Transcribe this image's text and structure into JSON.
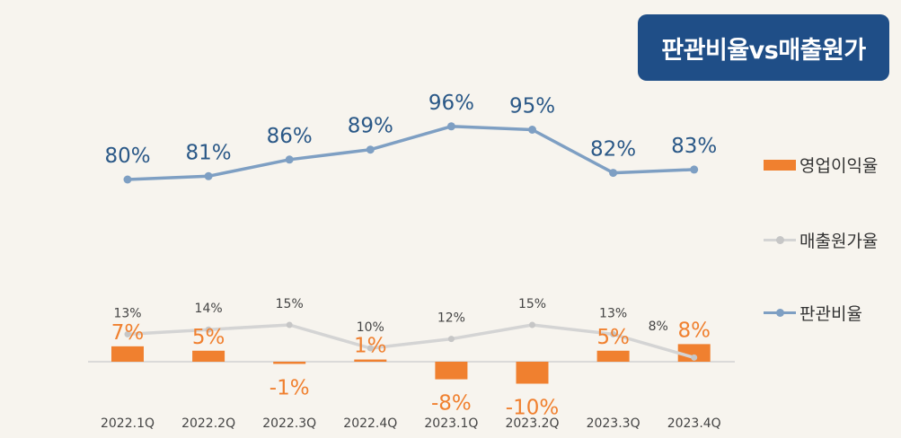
{
  "title": "판관비율vs매출원가",
  "colors": {
    "background": "#f7f4ee",
    "title_bg": "#1f4e87",
    "opm": "#f0802f",
    "cogs": "#d4d4d4",
    "cogs_marker": "#c6c6c6",
    "sga_line": "#7e9fc3",
    "sga_text": "#2a5887",
    "axis": "#d2d2d2",
    "tick": "#444444",
    "label_dark": "#444444"
  },
  "legend": [
    {
      "key": "opm",
      "label": "영업이익율",
      "type": "bar"
    },
    {
      "key": "cogs",
      "label": "매출원가율",
      "type": "line"
    },
    {
      "key": "sga",
      "label": "판관비율",
      "type": "line"
    }
  ],
  "chart_data": {
    "type": "bar+line",
    "categories": [
      "2022.1Q",
      "2022.2Q",
      "2022.3Q",
      "2022.4Q",
      "2023.1Q",
      "2023.2Q",
      "2023.3Q",
      "2023.4Q"
    ],
    "series": [
      {
        "key": "opm",
        "name": "영업이익율",
        "type": "bar",
        "values": [
          7,
          5,
          -1,
          1,
          -8,
          -10,
          5,
          8
        ],
        "labels": [
          "7%",
          "5%",
          "-1%",
          "1%",
          "-8%",
          "-10%",
          "5%",
          "8%"
        ]
      },
      {
        "key": "cogs",
        "name": "매출원가율",
        "type": "line",
        "values": [
          13,
          14,
          15,
          10,
          12,
          15,
          13,
          8
        ],
        "labels": [
          "13%",
          "14%",
          "15%",
          "10%",
          "12%",
          "15%",
          "13%",
          "8%"
        ]
      },
      {
        "key": "sga",
        "name": "판관비율",
        "type": "line",
        "values": [
          80,
          81,
          86,
          89,
          96,
          95,
          82,
          83
        ],
        "labels": [
          "80%",
          "81%",
          "86%",
          "89%",
          "96%",
          "95%",
          "82%",
          "83%"
        ]
      }
    ],
    "legend_position": "right",
    "grid": false
  }
}
